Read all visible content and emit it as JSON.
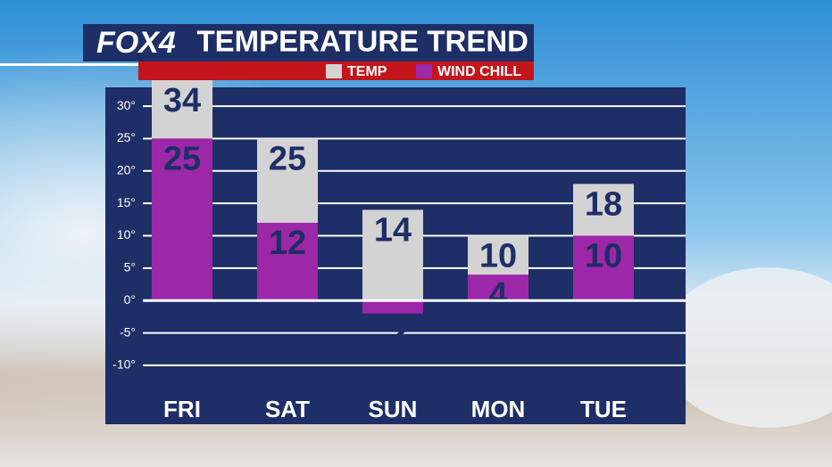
{
  "chart_data": {
    "type": "bar",
    "logo": "FOX4",
    "title": "TEMPERATURE TREND",
    "categories": [
      "FRI",
      "SAT",
      "SUN",
      "MON",
      "TUE"
    ],
    "series": [
      {
        "name": "TEMP",
        "color": "#d3d3d3",
        "values": [
          34,
          25,
          14,
          10,
          18
        ]
      },
      {
        "name": "WIND CHILL",
        "color": "#9c27a8",
        "values": [
          25,
          12,
          -2,
          4,
          10
        ]
      }
    ],
    "ylim": [
      -14,
      34
    ],
    "yticks": [
      {
        "value": -10,
        "label": "-10°"
      },
      {
        "value": -5,
        "label": "-5°"
      },
      {
        "value": 0,
        "label": "0°"
      },
      {
        "value": 5,
        "label": "5°"
      },
      {
        "value": 10,
        "label": "10°"
      },
      {
        "value": 15,
        "label": "15°"
      },
      {
        "value": 20,
        "label": "20°"
      },
      {
        "value": 25,
        "label": "25°"
      },
      {
        "value": 30,
        "label": "30°"
      }
    ],
    "grid": true
  }
}
